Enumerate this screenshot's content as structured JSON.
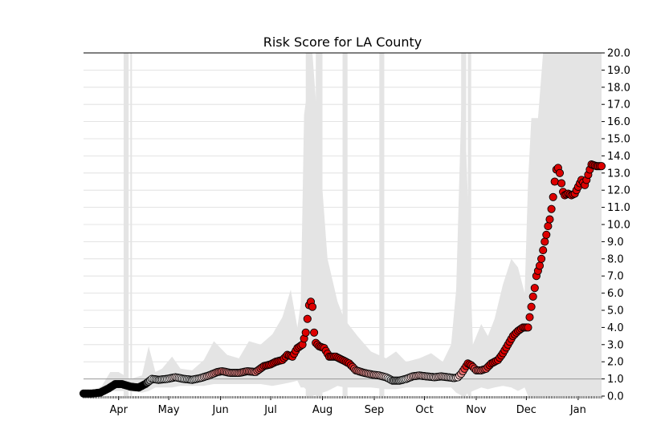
{
  "chart_data": {
    "type": "scatter",
    "title": "Risk Score for LA County",
    "xlabel": "",
    "ylabel": "",
    "x_range": [
      "2020-03-11",
      "2021-01-15"
    ],
    "ylim": [
      0,
      20
    ],
    "y_ticks": [
      "0.0",
      "1.0",
      "2.0",
      "3.0",
      "4.0",
      "5.0",
      "6.0",
      "7.0",
      "8.0",
      "9.0",
      "10.0",
      "11.0",
      "12.0",
      "13.0",
      "14.0",
      "15.0",
      "16.0",
      "17.0",
      "18.0",
      "19.0",
      "20.0"
    ],
    "x_ticks": [
      {
        "label": "Apr",
        "date": "2020-04-01"
      },
      {
        "label": "May",
        "date": "2020-05-01"
      },
      {
        "label": "Jun",
        "date": "2020-06-01"
      },
      {
        "label": "Jul",
        "date": "2020-07-01"
      },
      {
        "label": "Aug",
        "date": "2020-08-01"
      },
      {
        "label": "Sep",
        "date": "2020-09-01"
      },
      {
        "label": "Oct",
        "date": "2020-10-01"
      },
      {
        "label": "Nov",
        "date": "2020-11-01"
      },
      {
        "label": "Dec",
        "date": "2020-12-01"
      },
      {
        "label": "Jan",
        "date": "2021-01-01"
      }
    ],
    "y_axis_side": "right",
    "grid": "horizontal",
    "reference_line": 1.0,
    "colors": {
      "below_one": "#000000",
      "near_one": "#ffffff",
      "above_one": "#dd0000",
      "band": "#e4e4e4",
      "reference": "#999999"
    },
    "series": [
      {
        "points": [
          [
            "2020-03-11",
            0.15
          ],
          [
            "2020-03-16",
            0.15
          ],
          [
            "2020-03-21",
            0.2
          ],
          [
            "2020-03-26",
            0.45
          ],
          [
            "2020-03-30",
            0.7
          ],
          [
            "2020-04-03",
            0.7
          ],
          [
            "2020-04-08",
            0.55
          ],
          [
            "2020-04-13",
            0.5
          ],
          [
            "2020-04-17",
            0.7
          ],
          [
            "2020-04-21",
            1.0
          ],
          [
            "2020-04-25",
            0.95
          ],
          [
            "2020-04-30",
            1.0
          ],
          [
            "2020-05-05",
            1.1
          ],
          [
            "2020-05-10",
            1.0
          ],
          [
            "2020-05-15",
            0.95
          ],
          [
            "2020-05-20",
            1.05
          ],
          [
            "2020-05-25",
            1.2
          ],
          [
            "2020-05-30",
            1.4
          ],
          [
            "2020-06-02",
            1.45
          ],
          [
            "2020-06-07",
            1.35
          ],
          [
            "2020-06-12",
            1.35
          ],
          [
            "2020-06-17",
            1.45
          ],
          [
            "2020-06-22",
            1.4
          ],
          [
            "2020-06-27",
            1.75
          ],
          [
            "2020-07-01",
            1.85
          ],
          [
            "2020-07-04",
            2.0
          ],
          [
            "2020-07-08",
            2.1
          ],
          [
            "2020-07-11",
            2.4
          ],
          [
            "2020-07-14",
            2.3
          ],
          [
            "2020-07-17",
            2.8
          ],
          [
            "2020-07-20",
            3.0
          ],
          [
            "2020-07-22",
            3.7
          ],
          [
            "2020-07-23",
            4.5
          ],
          [
            "2020-07-24",
            5.3
          ],
          [
            "2020-07-25",
            5.5
          ],
          [
            "2020-07-26",
            5.2
          ],
          [
            "2020-07-27",
            3.7
          ],
          [
            "2020-07-28",
            3.1
          ],
          [
            "2020-07-30",
            2.9
          ],
          [
            "2020-08-02",
            2.8
          ],
          [
            "2020-08-05",
            2.3
          ],
          [
            "2020-08-09",
            2.3
          ],
          [
            "2020-08-13",
            2.1
          ],
          [
            "2020-08-17",
            1.9
          ],
          [
            "2020-08-21",
            1.5
          ],
          [
            "2020-08-26",
            1.35
          ],
          [
            "2020-08-31",
            1.25
          ],
          [
            "2020-09-04",
            1.2
          ],
          [
            "2020-09-08",
            1.1
          ],
          [
            "2020-09-12",
            0.9
          ],
          [
            "2020-09-16",
            0.9
          ],
          [
            "2020-09-20",
            1.0
          ],
          [
            "2020-09-24",
            1.15
          ],
          [
            "2020-09-28",
            1.2
          ],
          [
            "2020-10-02",
            1.15
          ],
          [
            "2020-10-07",
            1.1
          ],
          [
            "2020-10-11",
            1.15
          ],
          [
            "2020-10-15",
            1.1
          ],
          [
            "2020-10-19",
            1.05
          ],
          [
            "2020-10-21",
            1.1
          ],
          [
            "2020-10-23",
            1.3
          ],
          [
            "2020-10-25",
            1.6
          ],
          [
            "2020-10-27",
            1.9
          ],
          [
            "2020-10-29",
            1.8
          ],
          [
            "2020-11-01",
            1.5
          ],
          [
            "2020-11-04",
            1.5
          ],
          [
            "2020-11-07",
            1.6
          ],
          [
            "2020-11-10",
            1.9
          ],
          [
            "2020-11-14",
            2.1
          ],
          [
            "2020-11-17",
            2.5
          ],
          [
            "2020-11-20",
            3.0
          ],
          [
            "2020-11-23",
            3.5
          ],
          [
            "2020-11-26",
            3.8
          ],
          [
            "2020-11-29",
            4.0
          ],
          [
            "2020-12-02",
            4.0
          ],
          [
            "2020-12-03",
            4.6
          ],
          [
            "2020-12-04",
            5.2
          ],
          [
            "2020-12-05",
            5.8
          ],
          [
            "2020-12-06",
            6.3
          ],
          [
            "2020-12-07",
            7.0
          ],
          [
            "2020-12-08",
            7.3
          ],
          [
            "2020-12-09",
            7.6
          ],
          [
            "2020-12-10",
            8.0
          ],
          [
            "2020-12-11",
            8.5
          ],
          [
            "2020-12-12",
            9.0
          ],
          [
            "2020-12-13",
            9.4
          ],
          [
            "2020-12-14",
            9.9
          ],
          [
            "2020-12-15",
            10.3
          ],
          [
            "2020-12-16",
            10.9
          ],
          [
            "2020-12-17",
            11.6
          ],
          [
            "2020-12-18",
            12.5
          ],
          [
            "2020-12-19",
            13.2
          ],
          [
            "2020-12-20",
            13.3
          ],
          [
            "2020-12-21",
            13.0
          ],
          [
            "2020-12-22",
            12.4
          ],
          [
            "2020-12-23",
            11.9
          ],
          [
            "2020-12-24",
            11.7
          ],
          [
            "2020-12-26",
            11.8
          ],
          [
            "2020-12-28",
            11.7
          ],
          [
            "2020-12-30",
            11.8
          ],
          [
            "2021-01-01",
            12.2
          ],
          [
            "2021-01-03",
            12.6
          ],
          [
            "2021-01-05",
            12.3
          ],
          [
            "2021-01-07",
            12.9
          ],
          [
            "2021-01-09",
            13.5
          ],
          [
            "2021-01-12",
            13.4
          ],
          [
            "2021-01-15",
            13.4
          ]
        ]
      }
    ],
    "uncertainty_band": [
      [
        "2020-03-11",
        0,
        0
      ],
      [
        "2020-03-22",
        0,
        0.6
      ],
      [
        "2020-03-27",
        0.3,
        1.4
      ],
      [
        "2020-04-01",
        0.3,
        1.4
      ],
      [
        "2020-04-08",
        0.3,
        1.0
      ],
      [
        "2020-04-15",
        0.2,
        1.2
      ],
      [
        "2020-04-19",
        0.3,
        2.9
      ],
      [
        "2020-04-23",
        0.5,
        1.4
      ],
      [
        "2020-04-27",
        0.5,
        1.6
      ],
      [
        "2020-05-03",
        0.5,
        2.3
      ],
      [
        "2020-05-08",
        0.6,
        1.6
      ],
      [
        "2020-05-15",
        0.6,
        1.5
      ],
      [
        "2020-05-22",
        0.6,
        2.1
      ],
      [
        "2020-05-28",
        0.7,
        3.2
      ],
      [
        "2020-06-05",
        0.7,
        2.4
      ],
      [
        "2020-06-12",
        0.7,
        2.2
      ],
      [
        "2020-06-18",
        0.7,
        3.2
      ],
      [
        "2020-06-25",
        0.7,
        3.0
      ],
      [
        "2020-07-02",
        0.6,
        3.6
      ],
      [
        "2020-07-08",
        0.7,
        4.6
      ],
      [
        "2020-07-13",
        0.8,
        6.2
      ],
      [
        "2020-07-17",
        0.9,
        4.0
      ],
      [
        "2020-07-19",
        0.5,
        5.4
      ],
      [
        "2020-07-21",
        0.5,
        16.4
      ],
      [
        "2020-07-26",
        0,
        20
      ],
      [
        "2020-08-04",
        0.3,
        8.0
      ],
      [
        "2020-08-10",
        0.6,
        5.5
      ],
      [
        "2020-08-14",
        0.5,
        4.5
      ],
      [
        "2020-08-22",
        0.5,
        3.5
      ],
      [
        "2020-08-30",
        0.5,
        2.6
      ],
      [
        "2020-09-08",
        0.4,
        2.2
      ],
      [
        "2020-09-14",
        0.4,
        2.6
      ],
      [
        "2020-09-20",
        0.5,
        2.0
      ],
      [
        "2020-09-28",
        0.5,
        2.2
      ],
      [
        "2020-10-05",
        0.5,
        2.5
      ],
      [
        "2020-10-12",
        0.5,
        2.0
      ],
      [
        "2020-10-17",
        0.5,
        3.0
      ],
      [
        "2020-10-20",
        0.2,
        6.2
      ],
      [
        "2020-10-24",
        0,
        20
      ],
      [
        "2020-10-30",
        0.3,
        3.0
      ],
      [
        "2020-11-04",
        0.5,
        4.2
      ],
      [
        "2020-11-08",
        0.4,
        3.5
      ],
      [
        "2020-11-12",
        0.5,
        4.5
      ],
      [
        "2020-11-17",
        0.6,
        6.5
      ],
      [
        "2020-11-22",
        0.5,
        8.0
      ],
      [
        "2020-11-26",
        0.3,
        7.5
      ],
      [
        "2020-11-30",
        0.5,
        6.0
      ],
      [
        "2020-12-02",
        0,
        12.5
      ],
      [
        "2020-12-04",
        0,
        16.2
      ],
      [
        "2020-12-08",
        0,
        16.2
      ],
      [
        "2020-12-11",
        0,
        20
      ],
      [
        "2021-01-02",
        0,
        20
      ],
      [
        "2021-01-15",
        0,
        20
      ]
    ],
    "shaded_spans": [
      [
        "2020-04-04",
        "2020-04-07"
      ],
      [
        "2020-04-08",
        "2020-04-09"
      ],
      [
        "2020-07-22",
        "2020-07-26"
      ],
      [
        "2020-07-28",
        "2020-08-01"
      ],
      [
        "2020-08-13",
        "2020-08-16"
      ],
      [
        "2020-09-04",
        "2020-09-07"
      ],
      [
        "2020-10-23",
        "2020-10-26"
      ],
      [
        "2020-10-27",
        "2020-10-29"
      ]
    ]
  }
}
